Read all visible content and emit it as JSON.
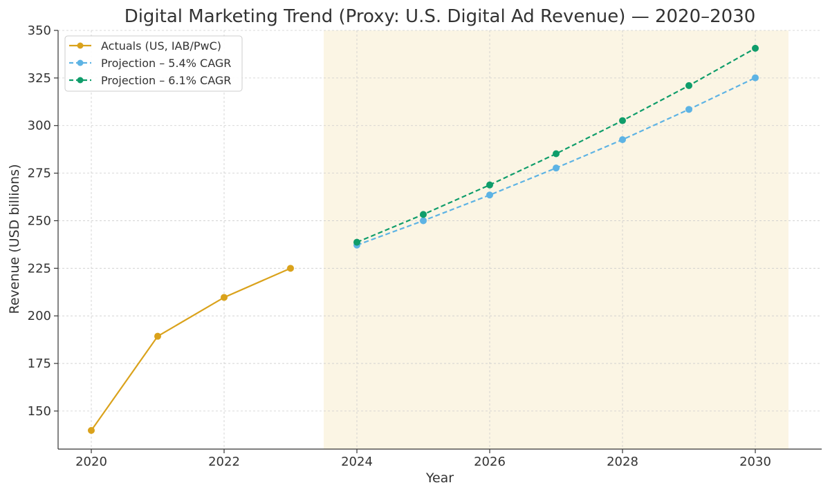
{
  "chart_data": {
    "type": "line",
    "title": "Digital Marketing Trend (Proxy: U.S. Digital Ad Revenue) — 2020–2030",
    "xlabel": "Year",
    "ylabel": "Revenue (USD billions)",
    "xlim": [
      2019.5,
      2031.0
    ],
    "ylim": [
      130,
      350
    ],
    "x_ticks": [
      2020,
      2022,
      2024,
      2026,
      2028,
      2030
    ],
    "y_ticks": [
      150,
      175,
      200,
      225,
      250,
      275,
      300,
      325,
      350
    ],
    "grid": true,
    "legend_position": "top-left",
    "projection_band": {
      "x_start": 2023.5,
      "x_end": 2030.5,
      "color": "#fbf5e4"
    },
    "series": [
      {
        "name": "Actuals (US, IAB/PwC)",
        "color": "#DAA21B",
        "style": "solid",
        "x": [
          2020,
          2021,
          2022,
          2023
        ],
        "values": [
          139.8,
          189.3,
          209.7,
          225.0
        ]
      },
      {
        "name": "Projection – 5.4% CAGR",
        "color": "#5DB3E4",
        "style": "dashed",
        "x": [
          2024,
          2025,
          2026,
          2027,
          2028,
          2029,
          2030
        ],
        "values": [
          237.2,
          250.0,
          263.5,
          277.7,
          292.6,
          308.5,
          325.1
        ]
      },
      {
        "name": "Projection – 6.1% CAGR",
        "color": "#0F9D6A",
        "style": "dashed",
        "x": [
          2024,
          2025,
          2026,
          2027,
          2028,
          2029,
          2030
        ],
        "values": [
          238.7,
          253.3,
          268.8,
          285.2,
          302.6,
          321.0,
          340.6
        ]
      }
    ]
  }
}
